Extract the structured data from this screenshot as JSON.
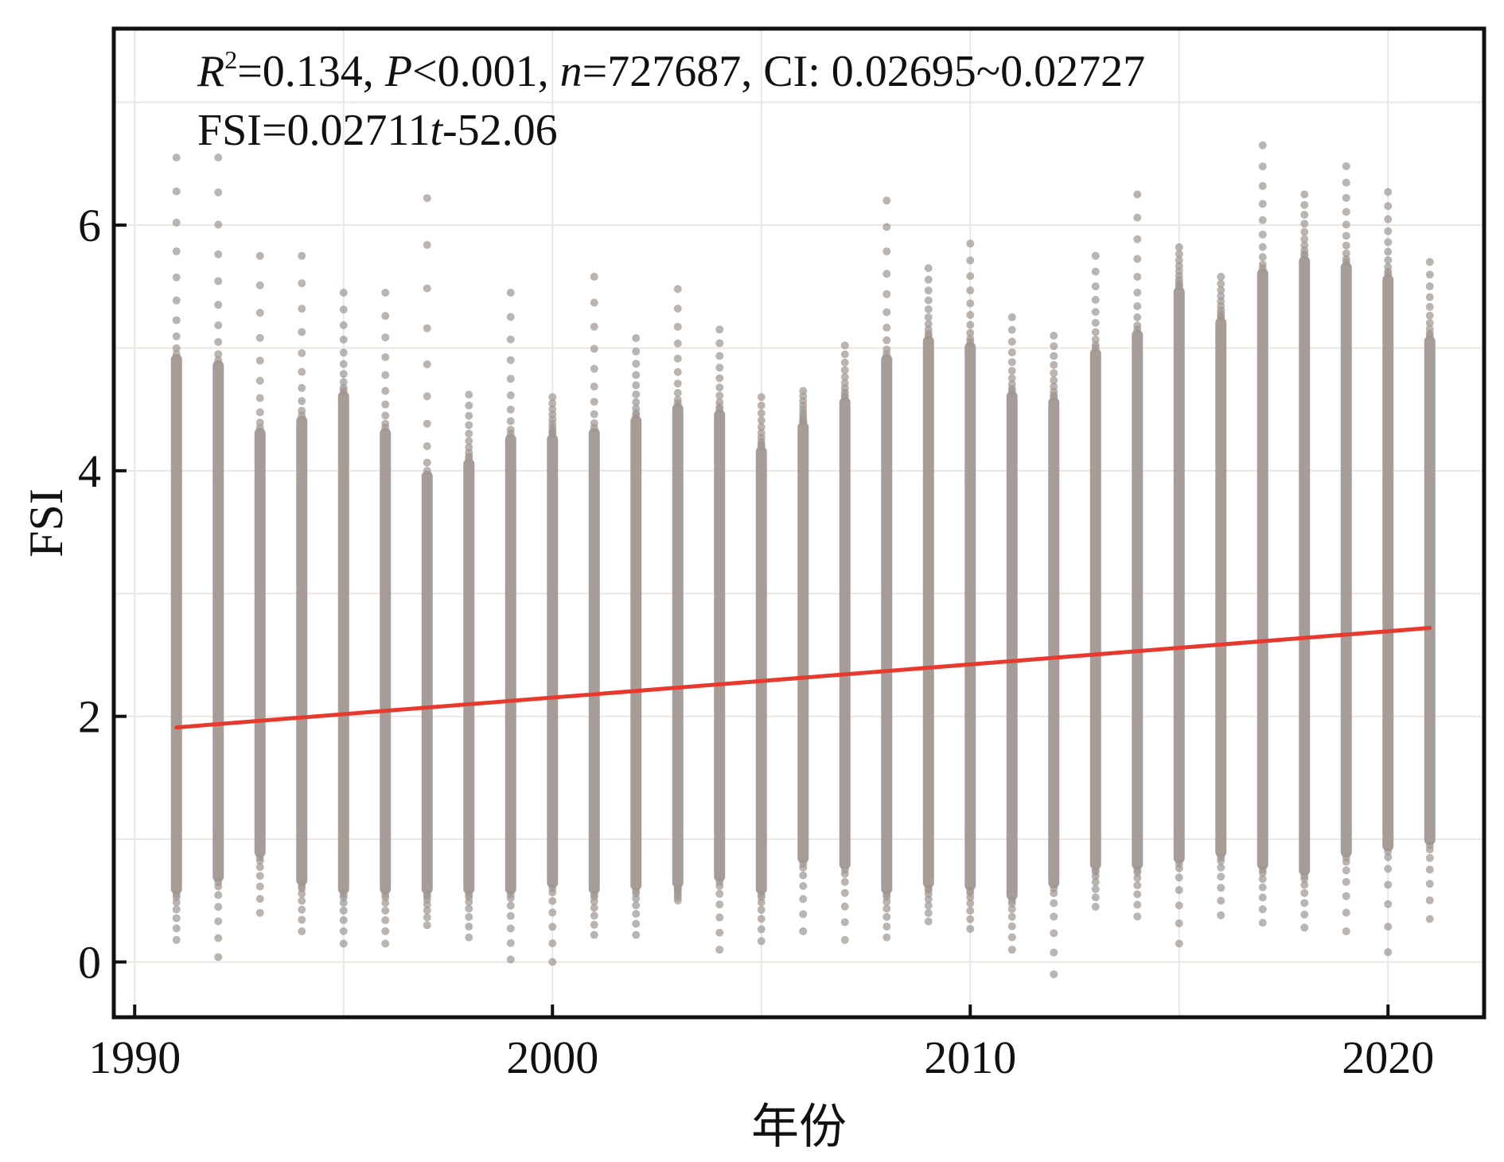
{
  "chart_data": {
    "type": "scatter",
    "title": "",
    "xlabel": "年份",
    "ylabel": "FSI",
    "xlim": [
      1989.5,
      2022.3
    ],
    "ylim": [
      -0.45,
      7.6
    ],
    "xticks": [
      1990,
      2000,
      2010,
      2020
    ],
    "yticks": [
      0,
      2,
      4,
      6
    ],
    "grid": true,
    "annotations": {
      "line1": {
        "r_label": "R",
        "r_sup": "2",
        "r_value": "=0.134, ",
        "p_label": "P",
        "p_value": "<0.001, ",
        "n_label": "n",
        "n_value": "=727687, CI: 0.02695~0.02727"
      },
      "line2": {
        "eq_prefix": "FSI=0.02711",
        "eq_var": "t",
        "eq_suffix": "-52.06"
      }
    },
    "series": [
      {
        "type": "scatter",
        "color": "#9e9590",
        "x": [
          1991,
          1992,
          1993,
          1994,
          1995,
          1996,
          1997,
          1998,
          1999,
          2000,
          2001,
          2002,
          2003,
          2004,
          2005,
          2006,
          2007,
          2008,
          2009,
          2010,
          2011,
          2012,
          2013,
          2014,
          2015,
          2016,
          2017,
          2018,
          2019,
          2020,
          2021
        ],
        "y_min": [
          0.18,
          0.04,
          0.4,
          0.25,
          0.15,
          0.15,
          0.3,
          0.2,
          0.02,
          0.0,
          0.22,
          0.22,
          0.5,
          0.1,
          0.17,
          0.25,
          0.18,
          0.2,
          0.33,
          0.27,
          0.1,
          -0.1,
          0.45,
          0.37,
          0.15,
          0.38,
          0.32,
          0.28,
          0.25,
          0.08,
          0.35
        ],
        "y_max": [
          6.55,
          6.55,
          5.75,
          5.75,
          5.45,
          5.45,
          6.22,
          4.62,
          5.45,
          4.6,
          5.58,
          5.08,
          5.48,
          5.15,
          4.6,
          4.65,
          5.02,
          6.2,
          5.65,
          5.85,
          5.25,
          5.1,
          5.75,
          6.25,
          5.82,
          5.58,
          6.65,
          6.25,
          6.48,
          6.27,
          5.7
        ],
        "core_min": [
          0.55,
          0.65,
          0.85,
          0.62,
          0.55,
          0.55,
          0.55,
          0.55,
          0.55,
          0.6,
          0.55,
          0.58,
          0.6,
          0.65,
          0.55,
          0.8,
          0.75,
          0.55,
          0.6,
          0.58,
          0.5,
          0.6,
          0.75,
          0.75,
          0.8,
          0.85,
          0.75,
          0.7,
          0.85,
          0.9,
          0.95
        ],
        "core_max": [
          4.95,
          4.9,
          4.35,
          4.45,
          4.65,
          4.35,
          4.0,
          4.1,
          4.3,
          4.3,
          4.35,
          4.45,
          4.55,
          4.5,
          4.2,
          4.4,
          4.6,
          4.95,
          5.1,
          5.05,
          4.65,
          4.6,
          5.0,
          5.15,
          5.5,
          5.25,
          5.65,
          5.75,
          5.7,
          5.6,
          5.1
        ]
      },
      {
        "type": "line",
        "color": "#e8392f",
        "x": [
          1991,
          2021
        ],
        "y": [
          1.91,
          2.72
        ]
      }
    ]
  }
}
